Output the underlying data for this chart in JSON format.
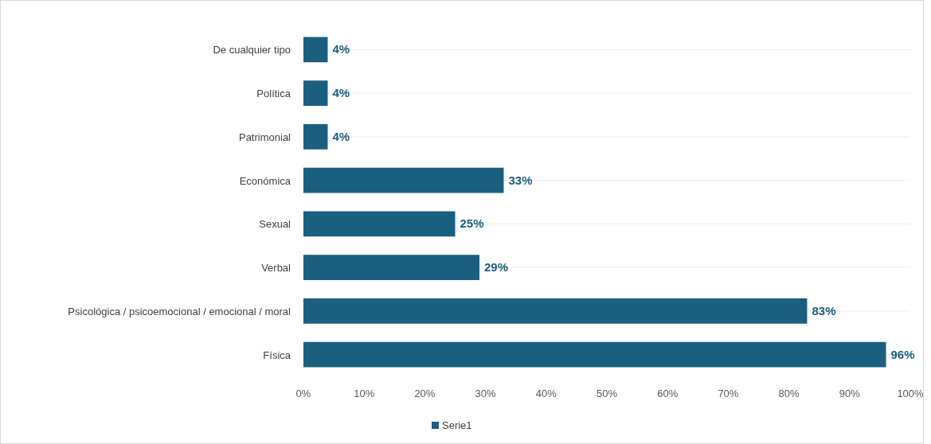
{
  "chart_data": {
    "type": "bar",
    "orientation": "horizontal",
    "categories": [
      "De cualquier tipo",
      "Política",
      "Patrimonial",
      "Económica",
      "Sexual",
      "Verbal",
      "Psicológica / psicoemocional / emocional / moral",
      "Física"
    ],
    "series": [
      {
        "name": "Serie1",
        "color": "#1a5f80",
        "values": [
          4,
          4,
          4,
          33,
          25,
          29,
          83,
          96
        ],
        "value_labels": [
          "4%",
          "4%",
          "4%",
          "33%",
          "25%",
          "29%",
          "83%",
          "96%"
        ]
      }
    ],
    "xlim": [
      0,
      100
    ],
    "xticks": [
      {
        "value": 0,
        "label": "0%"
      },
      {
        "value": 10,
        "label": "10%"
      },
      {
        "value": 20,
        "label": "20%"
      },
      {
        "value": 30,
        "label": "30%"
      },
      {
        "value": 40,
        "label": "40%"
      },
      {
        "value": 50,
        "label": "50%"
      },
      {
        "value": 60,
        "label": "60%"
      },
      {
        "value": 70,
        "label": "70%"
      },
      {
        "value": 80,
        "label": "80%"
      },
      {
        "value": 90,
        "label": "90%"
      },
      {
        "value": 100,
        "label": "100%"
      }
    ],
    "grid": "y",
    "legend": "bottom"
  }
}
